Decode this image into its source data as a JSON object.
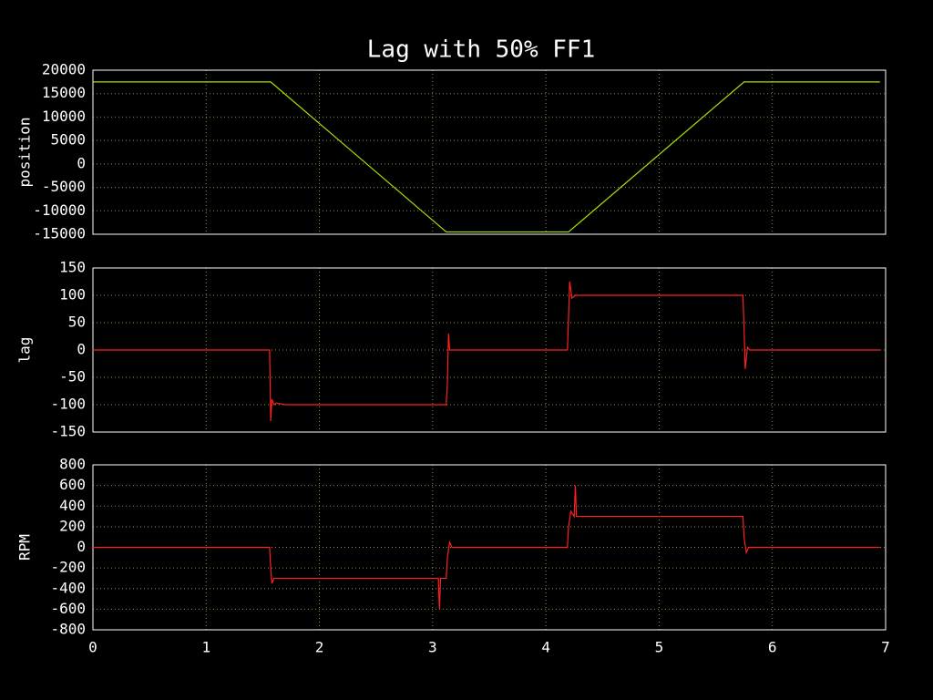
{
  "chart_data": [
    {
      "type": "line",
      "title": "Lag with 50% FF1",
      "ylabel": "position",
      "x": [
        0,
        1.57,
        3.12,
        4.2,
        5.75,
        6.95
      ],
      "series": [
        {
          "color": "#a8e000",
          "values": [
            17500,
            17500,
            -14500,
            -14500,
            17500,
            17500
          ]
        }
      ],
      "xlim": [
        0,
        7
      ],
      "ylim": [
        -15000,
        20000
      ],
      "yticks": [
        20000,
        15000,
        10000,
        5000,
        0,
        -5000,
        -10000,
        -15000
      ],
      "grid": true
    },
    {
      "type": "line",
      "ylabel": "lag",
      "x": [
        0,
        1.56,
        1.57,
        1.58,
        1.6,
        1.62,
        1.7,
        3.12,
        3.13,
        3.14,
        3.15,
        3.17,
        4.19,
        4.2,
        4.21,
        4.23,
        4.26,
        5.74,
        5.75,
        5.76,
        5.78,
        5.8,
        6.95
      ],
      "series": [
        {
          "color": "#ff2020",
          "values": [
            0,
            0,
            -130,
            -90,
            -100,
            -97,
            -100,
            -100,
            -60,
            30,
            0,
            0,
            0,
            60,
            125,
            95,
            100,
            100,
            40,
            -35,
            5,
            0,
            0
          ]
        }
      ],
      "xlim": [
        0,
        7
      ],
      "ylim": [
        -150,
        150
      ],
      "yticks": [
        150,
        100,
        50,
        0,
        -50,
        -100,
        -150
      ],
      "grid": true
    },
    {
      "type": "line",
      "ylabel": "RPM",
      "x": [
        0,
        1.56,
        1.57,
        1.58,
        1.6,
        3.05,
        3.06,
        3.07,
        3.12,
        3.13,
        3.15,
        3.17,
        4.19,
        4.2,
        4.22,
        4.25,
        4.26,
        4.27,
        5.74,
        5.75,
        5.77,
        5.79,
        6.95
      ],
      "series": [
        {
          "color": "#ff2020",
          "values": [
            0,
            0,
            -200,
            -350,
            -300,
            -300,
            -600,
            -300,
            -300,
            -100,
            50,
            0,
            0,
            200,
            350,
            300,
            600,
            300,
            300,
            100,
            -50,
            0,
            0
          ]
        }
      ],
      "xlim": [
        0,
        7
      ],
      "ylim": [
        -800,
        800
      ],
      "xticks": [
        0,
        1,
        2,
        3,
        4,
        5,
        6,
        7
      ],
      "yticks": [
        800,
        600,
        400,
        200,
        0,
        -200,
        -400,
        -600,
        -800
      ],
      "grid": true
    }
  ]
}
